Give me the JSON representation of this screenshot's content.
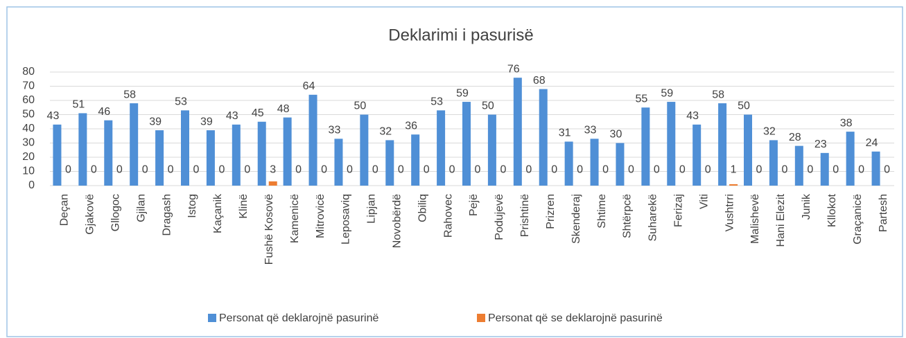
{
  "chart_data": {
    "type": "bar",
    "title": "Deklarimi i pasurisë",
    "categories": [
      "Deçan",
      "Gjakovë",
      "Gllogoc",
      "Gjilan",
      "Dragash",
      "Istog",
      "Kaçanik",
      "Klinë",
      "Fushë Kosovë",
      "Kamenicë",
      "Mitrovicë",
      "Leposaviq",
      "Lipjan",
      "Novobërdë",
      "Obiliq",
      "Rahovec",
      "Pejë",
      "Podujevë",
      "Prishtinë",
      "Prizren",
      "Skenderaj",
      "Shtime",
      "Shtërpcë",
      "Suharekë",
      "Ferizaj",
      "Viti",
      "Vushtrri",
      "Malishevë",
      "Hani Elezit",
      "Junik",
      "Kllokot",
      "Graçanicë",
      "Partesh"
    ],
    "series": [
      {
        "name": "Personat që deklarojnë pasurinë",
        "color": "#4f8fd6",
        "values": [
          43,
          51,
          46,
          58,
          39,
          53,
          39,
          43,
          45,
          48,
          64,
          33,
          50,
          32,
          36,
          53,
          59,
          50,
          76,
          68,
          31,
          33,
          30,
          55,
          59,
          43,
          58,
          50,
          32,
          28,
          23,
          38,
          24
        ]
      },
      {
        "name": "Personat që se deklarojnë pasurinë",
        "color": "#ed7d31",
        "values": [
          0,
          0,
          0,
          0,
          0,
          0,
          0,
          0,
          3,
          0,
          0,
          0,
          0,
          0,
          0,
          0,
          0,
          0,
          0,
          0,
          0,
          0,
          0,
          0,
          0,
          0,
          1,
          0,
          0,
          0,
          0,
          0,
          0
        ]
      }
    ],
    "ylim": [
      0,
      80
    ],
    "yticks": [
      0,
      10,
      20,
      30,
      40,
      50,
      60,
      70,
      80
    ],
    "grid": true,
    "legend": "bottom"
  }
}
